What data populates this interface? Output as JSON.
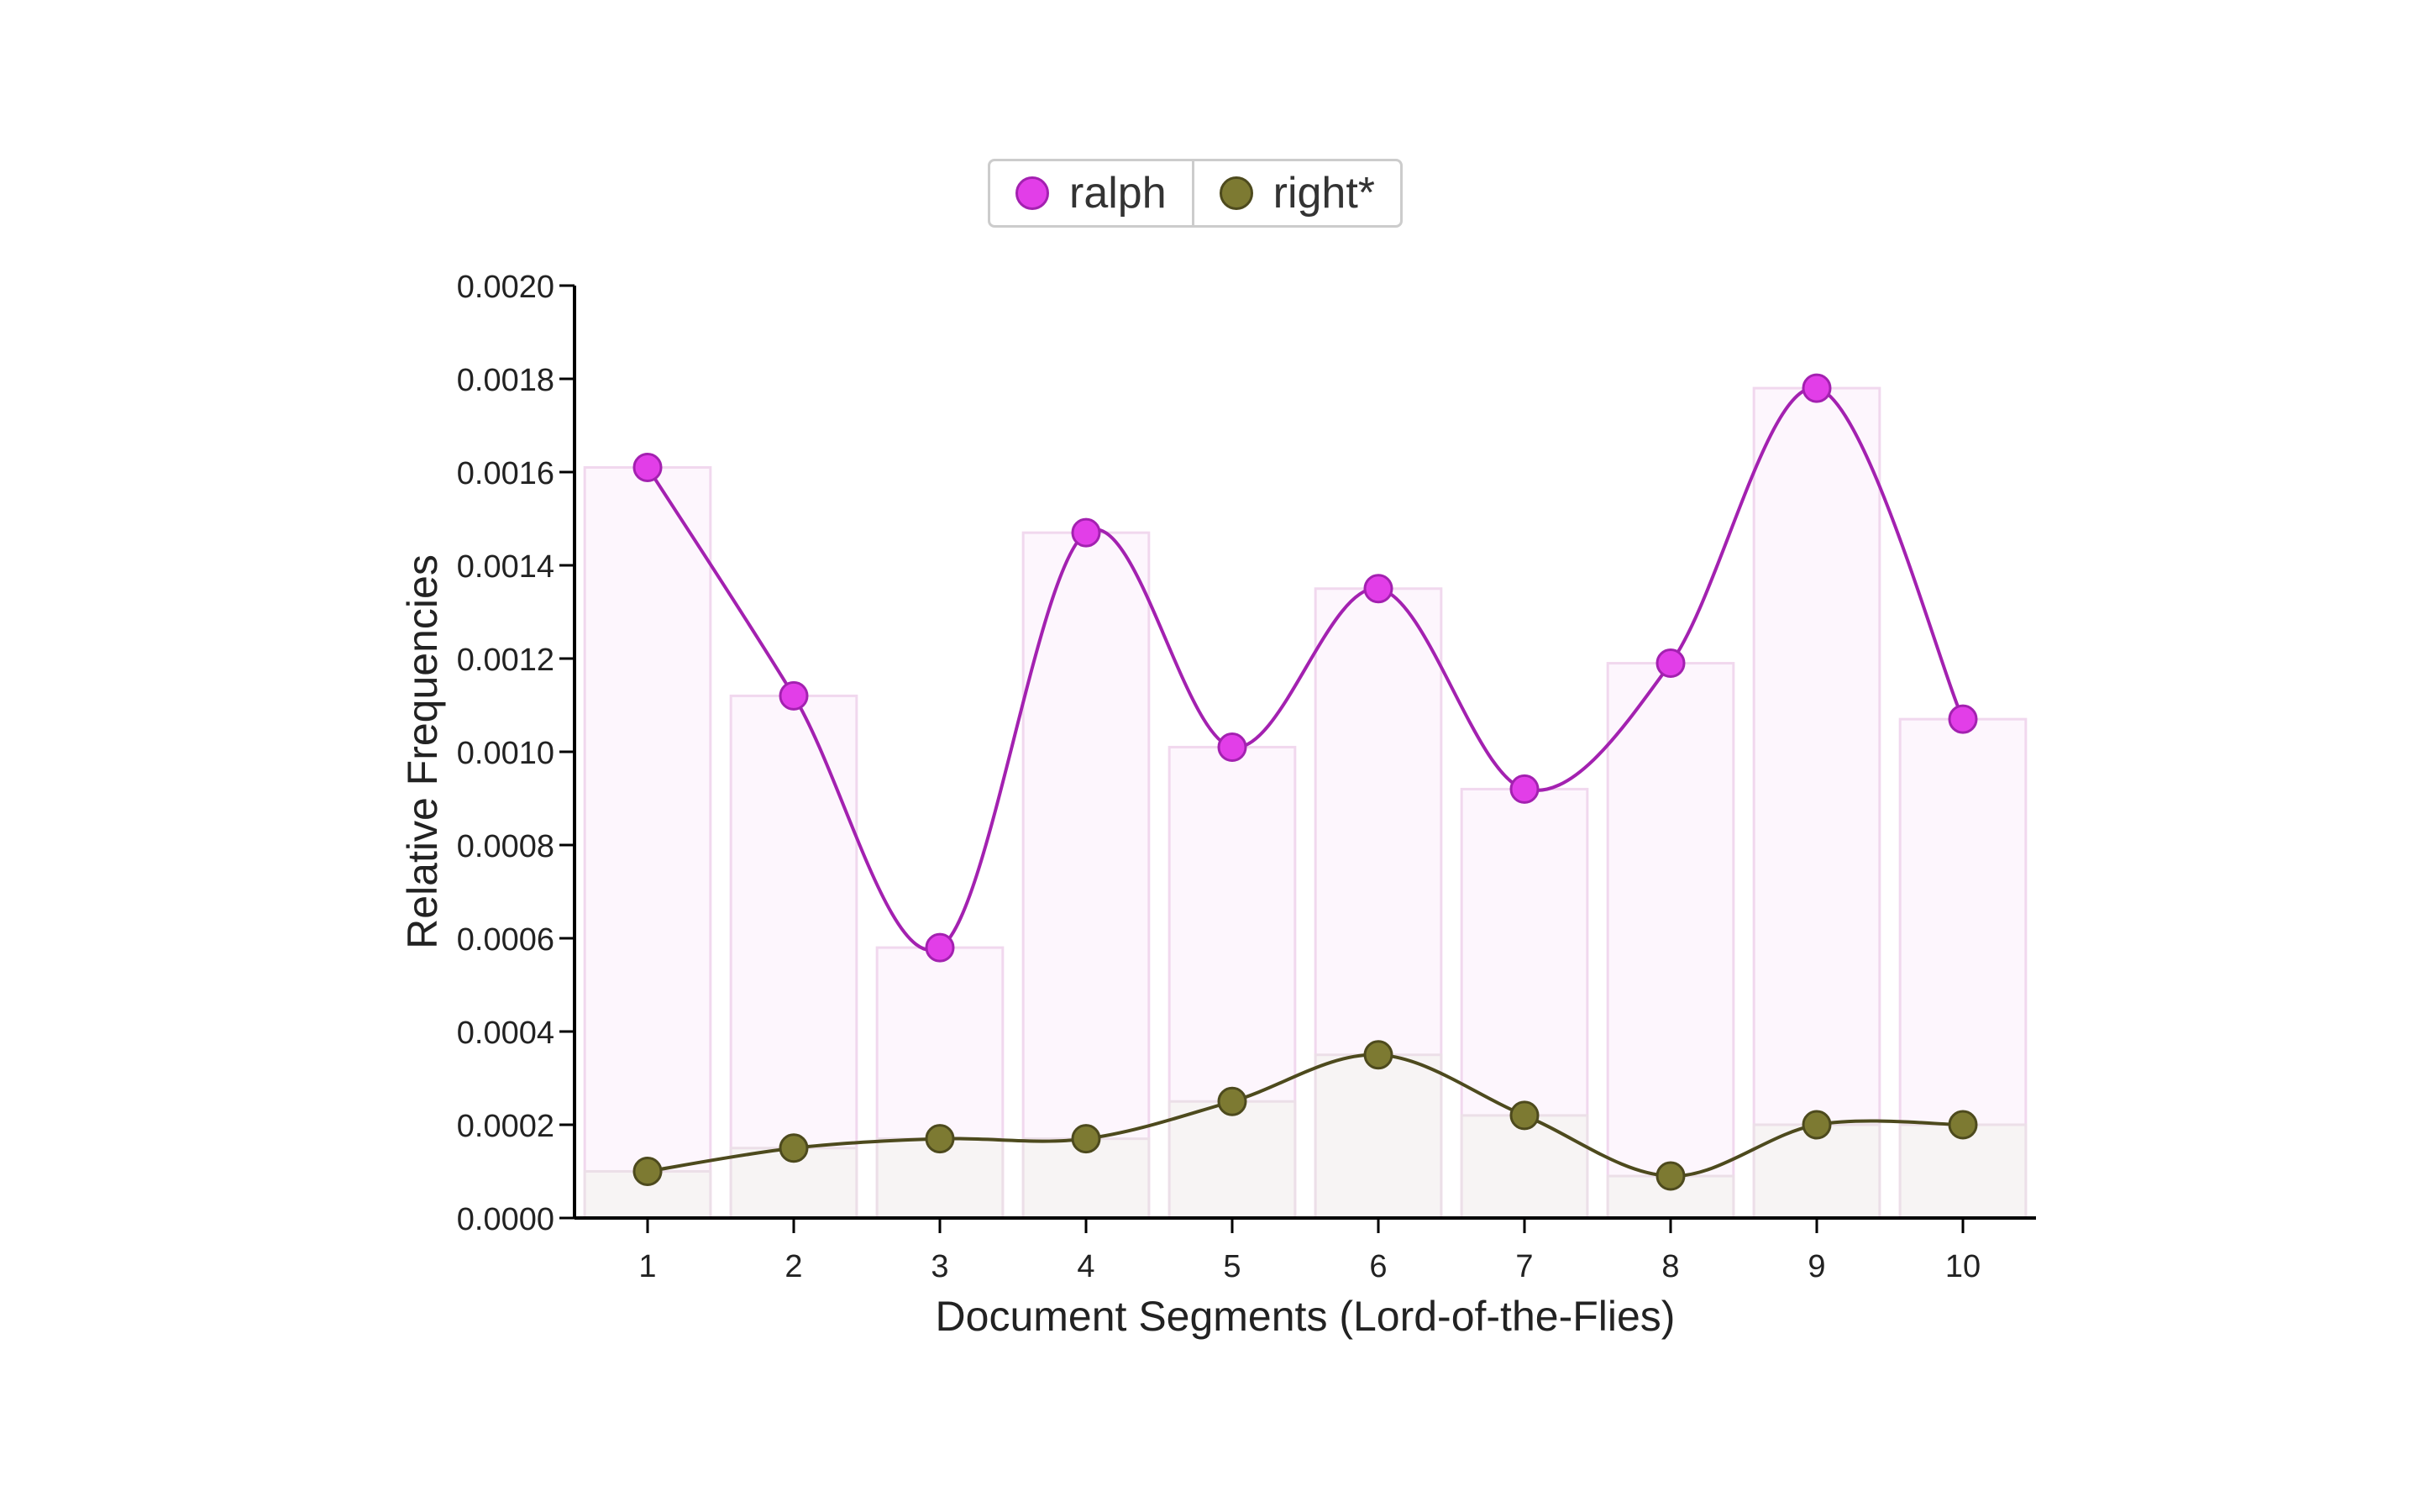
{
  "chart_data": {
    "type": "line",
    "title": "",
    "xlabel": "Document Segments (Lord-of-the-Flies)",
    "ylabel": "Relative Frequencies",
    "categories": [
      "1",
      "2",
      "3",
      "4",
      "5",
      "6",
      "7",
      "8",
      "9",
      "10"
    ],
    "yticks": [
      "0.0000",
      "0.0002",
      "0.0004",
      "0.0006",
      "0.0008",
      "0.0010",
      "0.0012",
      "0.0014",
      "0.0016",
      "0.0018",
      "0.0020"
    ],
    "ylim": [
      0,
      0.002
    ],
    "grid": false,
    "legend_position": "top-center",
    "bars_behind_lines": true,
    "series": [
      {
        "name": "ralph",
        "color": "#e23ee8",
        "line_color": "#a321b0",
        "bar_fill": "#fdf6fd",
        "bar_stroke": "#f1d8ee",
        "values": [
          0.00161,
          0.00112,
          0.00058,
          0.00147,
          0.00101,
          0.00135,
          0.00092,
          0.00119,
          0.00178,
          0.00107
        ]
      },
      {
        "name": "right*",
        "color": "#7d7a32",
        "line_color": "#4d4a1d",
        "bar_fill": "#f7f4f4",
        "bar_stroke": "#ecdfe8",
        "values": [
          0.0001,
          0.00015,
          0.00017,
          0.00017,
          0.00025,
          0.00035,
          0.00022,
          9e-05,
          0.0002,
          0.0002
        ]
      }
    ]
  }
}
